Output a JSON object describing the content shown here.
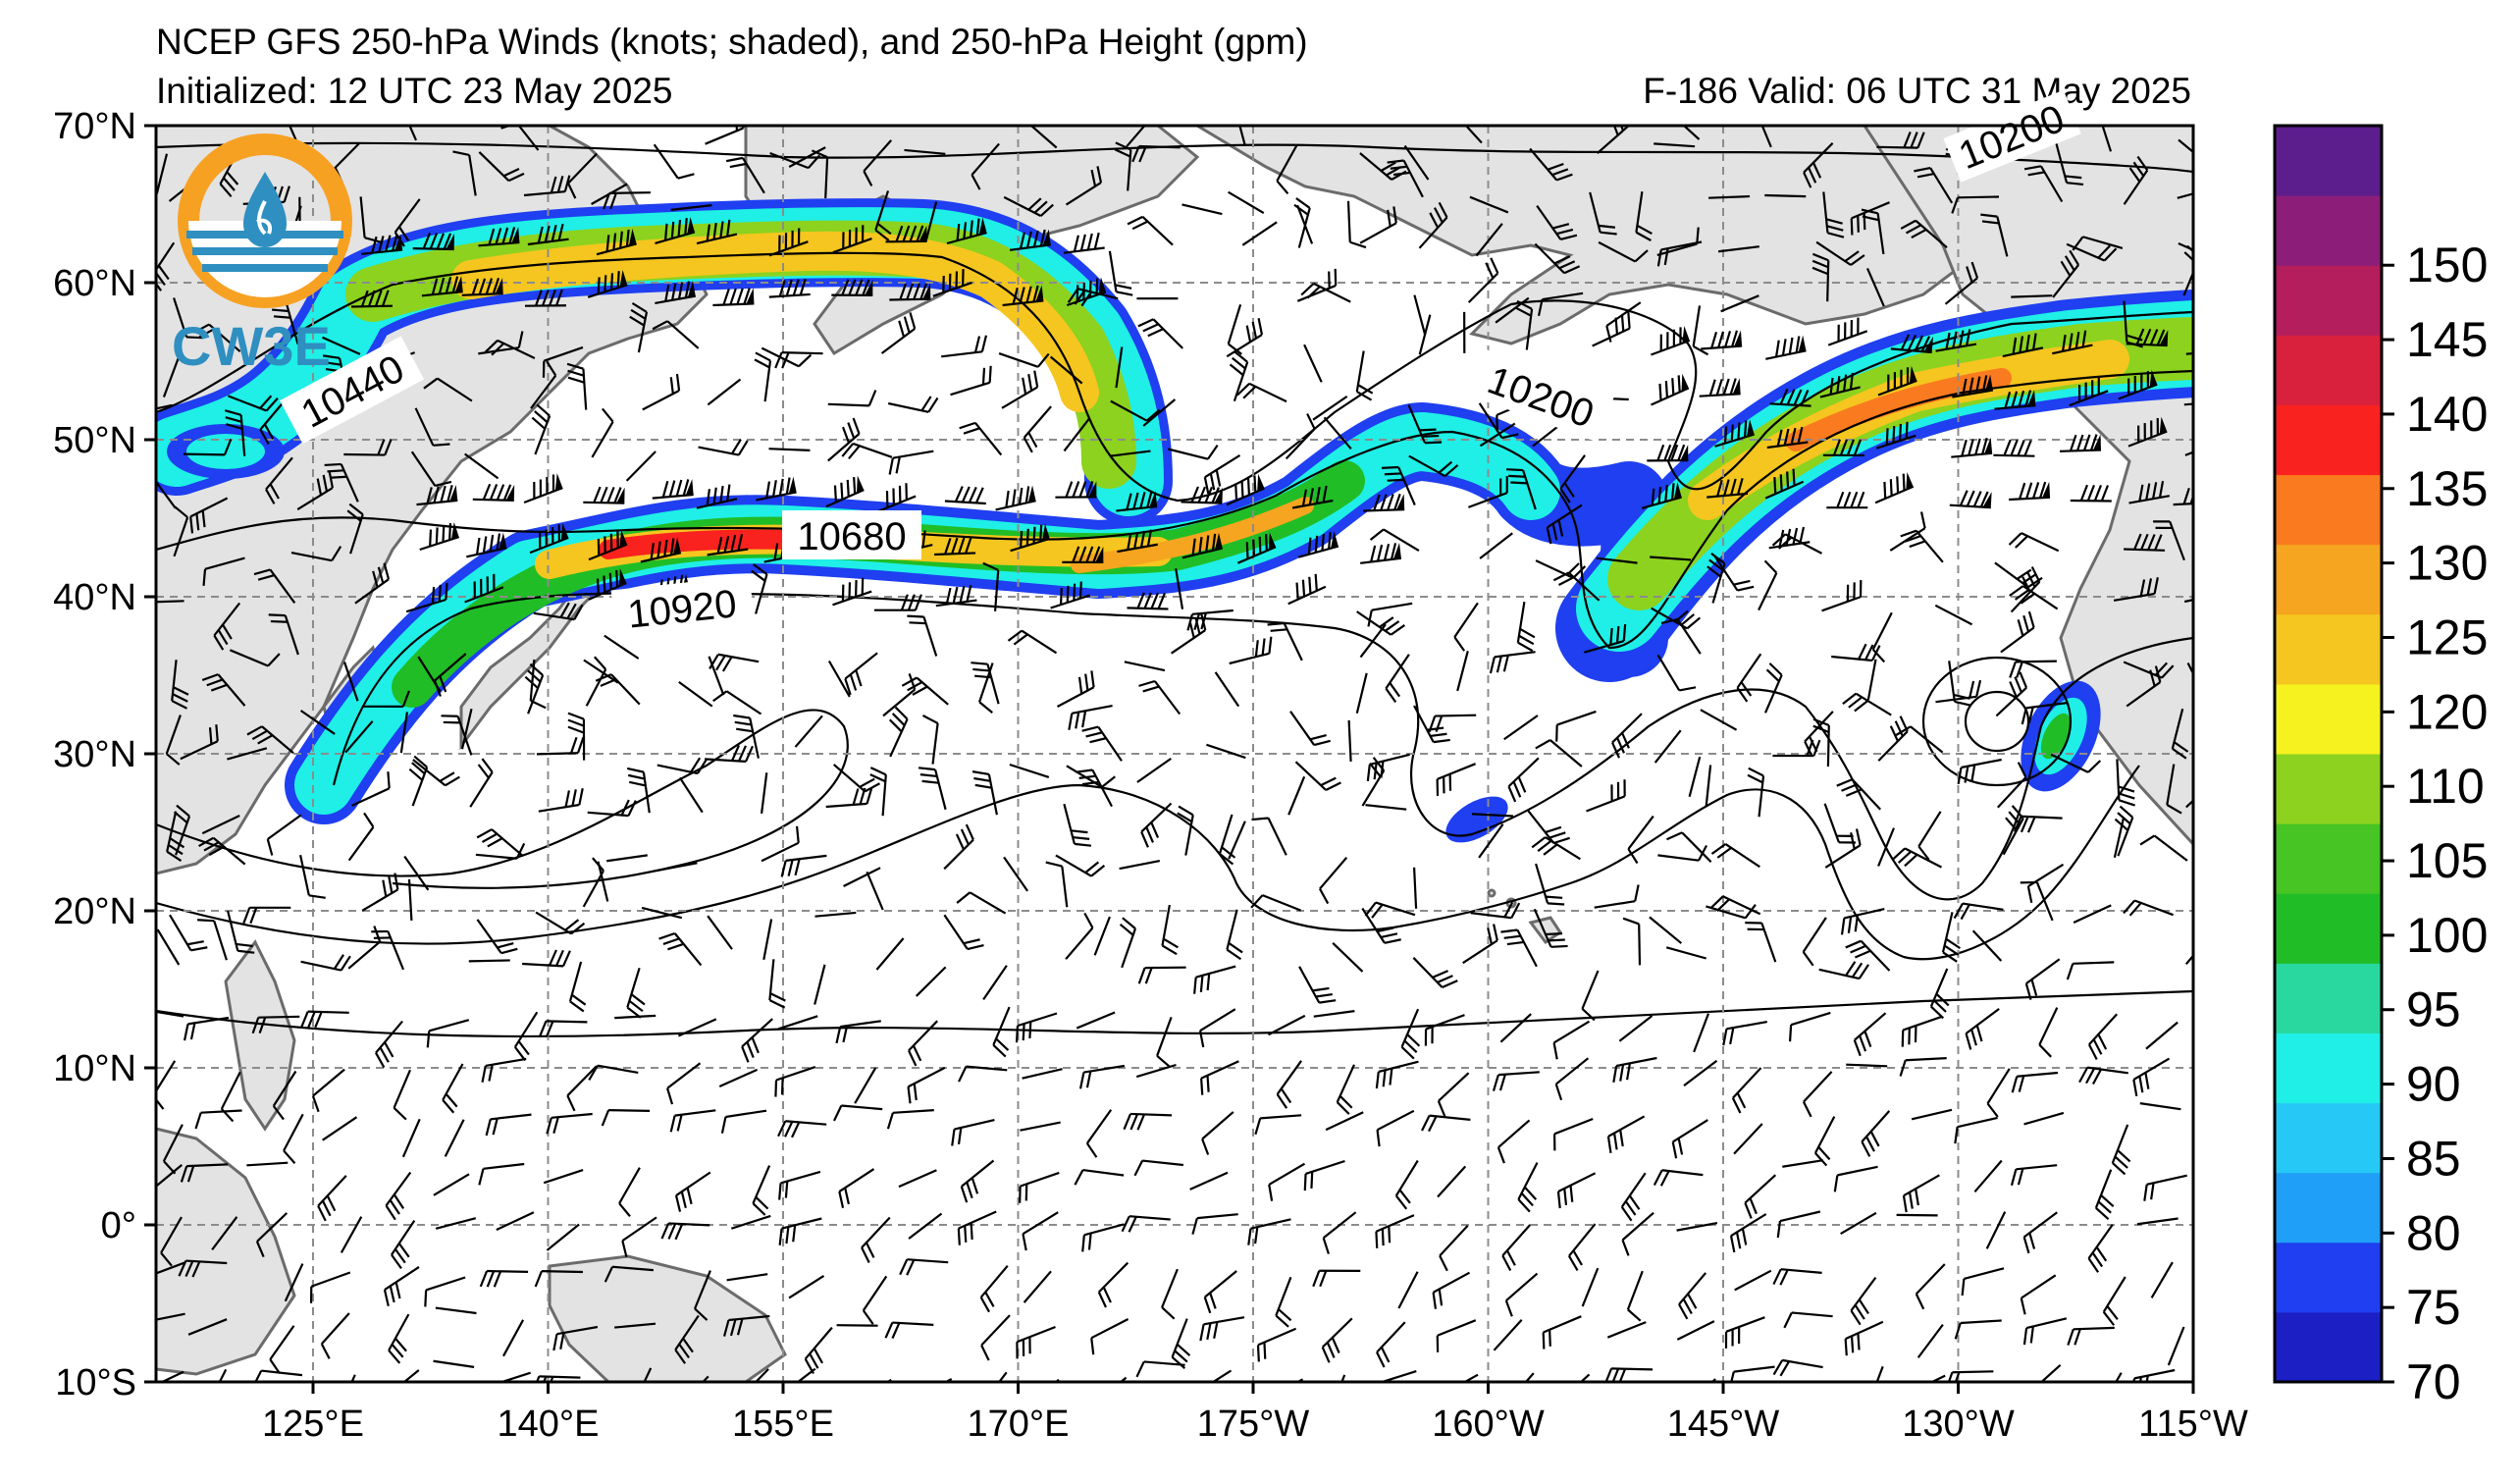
{
  "header": {
    "title": "NCEP GFS 250-hPa Winds (knots; shaded), and 250-hPa Height (gpm)",
    "initialized": "Initialized: 12 UTC 23 May 2025",
    "valid": "F-186  Valid: 06 UTC 31 May 2025"
  },
  "logo": {
    "text": "CW3E",
    "icon": "cw3e-drop-logo-icon"
  },
  "map": {
    "lon_ticks": [
      "125°E",
      "140°E",
      "155°E",
      "170°E",
      "175°W",
      "160°W",
      "145°W",
      "130°W",
      "115°W"
    ],
    "lat_ticks": [
      "70°N",
      "60°N",
      "50°N",
      "40°N",
      "30°N",
      "20°N",
      "10°N",
      "0°",
      "10°S"
    ],
    "contour_labels": [
      "10440",
      "10200",
      "10680",
      "10920",
      "10200"
    ]
  },
  "colorbar": {
    "labels": [
      "70",
      "75",
      "80",
      "85",
      "90",
      "95",
      "100",
      "105",
      "110",
      "120",
      "125",
      "130",
      "135",
      "140",
      "145",
      "150"
    ],
    "colors": [
      "#1b1fc4",
      "#1f3ff0",
      "#1f9ff7",
      "#26c9f5",
      "#1fefe6",
      "#29d89e",
      "#21bd27",
      "#46c524",
      "#8cd21f",
      "#f5f21f",
      "#f5c61f",
      "#f5a51f",
      "#fa7a1f",
      "#fa221f",
      "#d9203d",
      "#b51e5d",
      "#8c1e7a",
      "#5b1e8c"
    ]
  },
  "colors": {
    "land": "#e3e3e3",
    "coast": "#6b6b6b",
    "grid": "#8c8c8c",
    "logo_orange": "#f7a123",
    "logo_blue": "#2e8fc0"
  }
}
